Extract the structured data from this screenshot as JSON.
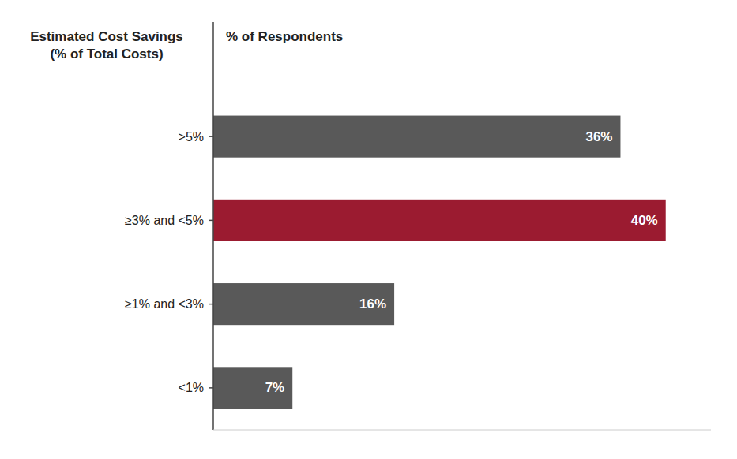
{
  "chart_data": {
    "type": "bar",
    "orientation": "horizontal",
    "ylabel": "Estimated Cost Savings\n(% of Total Costs)",
    "xlabel": "% of Respondents",
    "categories": [
      ">5%",
      "≥3% and <5%",
      "≥1% and <3%",
      "<1%"
    ],
    "values": [
      36,
      40,
      16,
      7
    ],
    "value_labels": [
      "36%",
      "40%",
      "16%",
      "7%"
    ],
    "colors": [
      "#595959",
      "#9B1B30",
      "#595959",
      "#595959"
    ],
    "xlim": [
      0,
      44
    ],
    "data_labels": true,
    "tick_labels": "y",
    "grid": false
  }
}
